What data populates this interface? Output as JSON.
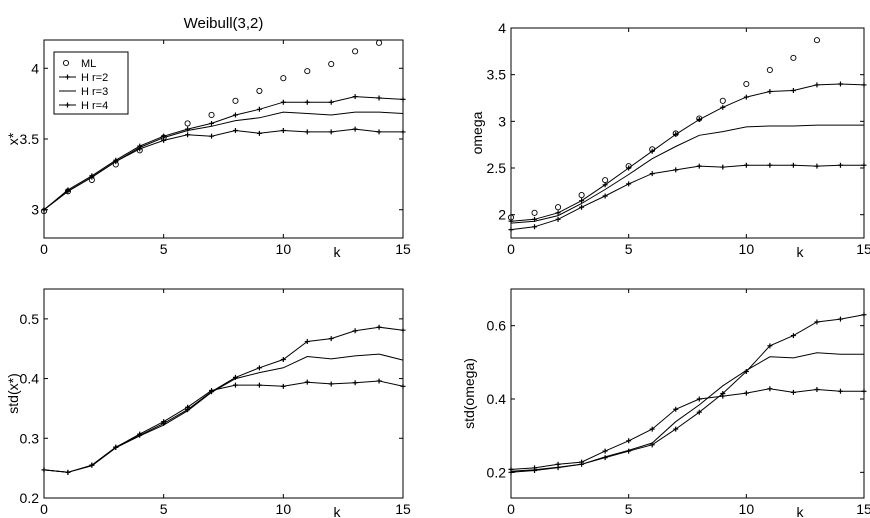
{
  "chart_data": [
    {
      "type": "line",
      "title": "Weibull(3,2)",
      "xlabel": "k",
      "ylabel": "x*",
      "xlim": [
        0,
        15
      ],
      "ylim": [
        2.8,
        4.2
      ],
      "xticks": [
        0,
        5,
        10,
        15
      ],
      "yticks": [
        3,
        3.5,
        4
      ],
      "legend": {
        "placement": "top-left",
        "entries": [
          "ML",
          "H  r=2",
          "H  r=3",
          "H  r=4"
        ]
      },
      "series": [
        {
          "name": "ML",
          "style": "circles",
          "x": [
            0,
            1,
            2,
            3,
            4,
            5,
            6,
            7,
            8,
            9,
            10,
            11,
            12,
            13,
            14
          ],
          "values": [
            2.99,
            3.13,
            3.21,
            3.32,
            3.42,
            3.51,
            3.61,
            3.67,
            3.77,
            3.84,
            3.93,
            3.98,
            4.03,
            4.12,
            4.18
          ]
        },
        {
          "name": "H  r=2",
          "style": "line-dots",
          "x": [
            0,
            1,
            2,
            3,
            4,
            5,
            6,
            7,
            8,
            9,
            10,
            11,
            12,
            13,
            14,
            15
          ],
          "values": [
            3.0,
            3.14,
            3.24,
            3.35,
            3.45,
            3.52,
            3.57,
            3.61,
            3.67,
            3.71,
            3.76,
            3.76,
            3.76,
            3.8,
            3.79,
            3.78
          ]
        },
        {
          "name": "H  r=3",
          "style": "line",
          "x": [
            0,
            1,
            2,
            3,
            4,
            5,
            6,
            7,
            8,
            9,
            10,
            11,
            12,
            13,
            14,
            15
          ],
          "values": [
            3.0,
            3.13,
            3.23,
            3.34,
            3.44,
            3.51,
            3.56,
            3.59,
            3.63,
            3.65,
            3.69,
            3.68,
            3.67,
            3.69,
            3.69,
            3.68
          ]
        },
        {
          "name": "H  r=4",
          "style": "line-dots",
          "x": [
            0,
            1,
            2,
            3,
            4,
            5,
            6,
            7,
            8,
            9,
            10,
            11,
            12,
            13,
            14,
            15
          ],
          "values": [
            3.0,
            3.13,
            3.23,
            3.34,
            3.43,
            3.49,
            3.53,
            3.52,
            3.56,
            3.54,
            3.56,
            3.55,
            3.55,
            3.57,
            3.55,
            3.55
          ]
        }
      ]
    },
    {
      "type": "line",
      "title": "",
      "xlabel": "k",
      "ylabel": "omega",
      "xlim": [
        0,
        15
      ],
      "ylim": [
        1.75,
        4.0
      ],
      "xticks": [
        0,
        5,
        10,
        15
      ],
      "yticks": [
        2,
        2.5,
        3,
        3.5,
        4
      ],
      "series": [
        {
          "name": "ML",
          "style": "circles",
          "x": [
            0,
            1,
            2,
            3,
            4,
            5,
            6,
            7,
            8,
            9,
            10,
            11,
            12,
            13
          ],
          "values": [
            1.97,
            2.02,
            2.08,
            2.21,
            2.37,
            2.52,
            2.7,
            2.87,
            3.03,
            3.22,
            3.4,
            3.55,
            3.68,
            3.87
          ]
        },
        {
          "name": "H  r=2",
          "style": "line-dots",
          "x": [
            0,
            1,
            2,
            3,
            4,
            5,
            6,
            7,
            8,
            9,
            10,
            11,
            12,
            13,
            14,
            15
          ],
          "values": [
            1.93,
            1.95,
            2.02,
            2.15,
            2.32,
            2.5,
            2.68,
            2.86,
            3.02,
            3.15,
            3.26,
            3.32,
            3.33,
            3.39,
            3.4,
            3.39
          ]
        },
        {
          "name": "H  r=3",
          "style": "line",
          "x": [
            0,
            1,
            2,
            3,
            4,
            5,
            6,
            7,
            8,
            9,
            10,
            11,
            12,
            13,
            14,
            15
          ],
          "values": [
            1.91,
            1.93,
            1.99,
            2.12,
            2.27,
            2.43,
            2.6,
            2.73,
            2.85,
            2.89,
            2.94,
            2.95,
            2.95,
            2.96,
            2.96,
            2.96
          ]
        },
        {
          "name": "H  r=4",
          "style": "line-dots",
          "x": [
            0,
            1,
            2,
            3,
            4,
            5,
            6,
            7,
            8,
            9,
            10,
            11,
            12,
            13,
            14,
            15
          ],
          "values": [
            1.84,
            1.87,
            1.95,
            2.08,
            2.2,
            2.33,
            2.44,
            2.48,
            2.52,
            2.51,
            2.53,
            2.53,
            2.53,
            2.52,
            2.53,
            2.53
          ]
        }
      ]
    },
    {
      "type": "line",
      "title": "",
      "xlabel": "k",
      "ylabel": "std(x*)",
      "xlim": [
        0,
        15
      ],
      "ylim": [
        0.2,
        0.55
      ],
      "xticks": [
        0,
        5,
        10,
        15
      ],
      "yticks": [
        0.2,
        0.3,
        0.4,
        0.5
      ],
      "series": [
        {
          "name": "H  r=2",
          "style": "line-dots",
          "x": [
            0,
            1,
            2,
            3,
            4,
            5,
            6,
            7,
            8,
            9,
            10,
            11,
            12,
            13,
            14,
            15
          ],
          "values": [
            0.247,
            0.243,
            0.255,
            0.285,
            0.305,
            0.325,
            0.348,
            0.378,
            0.402,
            0.418,
            0.432,
            0.462,
            0.467,
            0.48,
            0.486,
            0.481
          ]
        },
        {
          "name": "H  r=3",
          "style": "line",
          "x": [
            0,
            1,
            2,
            3,
            4,
            5,
            6,
            7,
            8,
            9,
            10,
            11,
            12,
            13,
            14,
            15
          ],
          "values": [
            0.247,
            0.243,
            0.254,
            0.284,
            0.304,
            0.322,
            0.346,
            0.377,
            0.4,
            0.41,
            0.418,
            0.437,
            0.433,
            0.438,
            0.441,
            0.431
          ]
        },
        {
          "name": "H  r=4",
          "style": "line-dots",
          "x": [
            0,
            1,
            2,
            3,
            4,
            5,
            6,
            7,
            8,
            9,
            10,
            11,
            12,
            13,
            14,
            15
          ],
          "values": [
            0.247,
            0.243,
            0.255,
            0.285,
            0.307,
            0.328,
            0.352,
            0.38,
            0.389,
            0.389,
            0.387,
            0.394,
            0.391,
            0.393,
            0.396,
            0.387
          ]
        }
      ]
    },
    {
      "type": "line",
      "title": "",
      "xlabel": "k",
      "ylabel": "std(omega)",
      "xlim": [
        0,
        15
      ],
      "ylim": [
        0.13,
        0.7
      ],
      "xticks": [
        0,
        5,
        10,
        15
      ],
      "yticks": [
        0.2,
        0.4,
        0.6
      ],
      "series": [
        {
          "name": "H  r=2",
          "style": "line-dots",
          "x": [
            0,
            1,
            2,
            3,
            4,
            5,
            6,
            7,
            8,
            9,
            10,
            11,
            12,
            13,
            14,
            15
          ],
          "values": [
            0.2,
            0.205,
            0.213,
            0.222,
            0.24,
            0.258,
            0.275,
            0.318,
            0.364,
            0.415,
            0.475,
            0.545,
            0.573,
            0.61,
            0.618,
            0.63
          ]
        },
        {
          "name": "H  r=3",
          "style": "line",
          "x": [
            0,
            1,
            2,
            3,
            4,
            5,
            6,
            7,
            8,
            9,
            10,
            11,
            12,
            13,
            14,
            15
          ],
          "values": [
            0.203,
            0.207,
            0.214,
            0.222,
            0.242,
            0.26,
            0.28,
            0.338,
            0.384,
            0.436,
            0.478,
            0.515,
            0.512,
            0.526,
            0.522,
            0.522
          ]
        },
        {
          "name": "H  r=4",
          "style": "line-dots",
          "x": [
            0,
            1,
            2,
            3,
            4,
            5,
            6,
            7,
            8,
            9,
            10,
            11,
            12,
            13,
            14,
            15
          ],
          "values": [
            0.208,
            0.212,
            0.222,
            0.228,
            0.258,
            0.286,
            0.318,
            0.372,
            0.4,
            0.408,
            0.416,
            0.428,
            0.418,
            0.426,
            0.421,
            0.421
          ]
        }
      ]
    }
  ]
}
